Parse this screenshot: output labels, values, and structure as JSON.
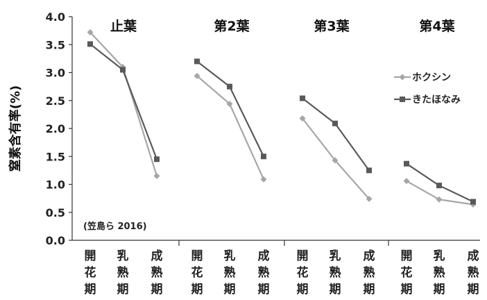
{
  "chart_data": {
    "type": "line",
    "ylabel": "窒素含有率(%)",
    "ylim": [
      0,
      4
    ],
    "yticks": [
      "0.0",
      "0.5",
      "1.0",
      "1.5",
      "2.0",
      "2.5",
      "3.0",
      "3.5",
      "4.0"
    ],
    "categories": [
      "開花期",
      "乳熟期",
      "成熟期"
    ],
    "legend_position": "right",
    "annotation": "(笠島ら 2016)",
    "panels": [
      {
        "title": "止葉",
        "series": [
          {
            "name": "ホクシン",
            "values": [
              3.72,
              3.1,
              1.15
            ]
          },
          {
            "name": "きたほなみ",
            "values": [
              3.51,
              3.05,
              1.45
            ]
          }
        ]
      },
      {
        "title": "第2葉",
        "series": [
          {
            "name": "ホクシン",
            "values": [
              2.94,
              2.44,
              1.09
            ]
          },
          {
            "name": "きたほなみ",
            "values": [
              3.2,
              2.75,
              1.5
            ]
          }
        ]
      },
      {
        "title": "第3葉",
        "series": [
          {
            "name": "ホクシン",
            "values": [
              2.18,
              1.43,
              0.74
            ]
          },
          {
            "name": "きたほなみ",
            "values": [
              2.54,
              2.09,
              1.25
            ]
          }
        ]
      },
      {
        "title": "第4葉",
        "series": [
          {
            "name": "ホクシン",
            "values": [
              1.06,
              0.73,
              0.64
            ]
          },
          {
            "name": "きたほなみ",
            "values": [
              1.37,
              0.98,
              0.69
            ]
          }
        ]
      }
    ],
    "series_styles": [
      {
        "name": "ホクシン",
        "color": "#a6a6a6",
        "marker": "diamond"
      },
      {
        "name": "きたほなみ",
        "color": "#595959",
        "marker": "square"
      }
    ]
  }
}
